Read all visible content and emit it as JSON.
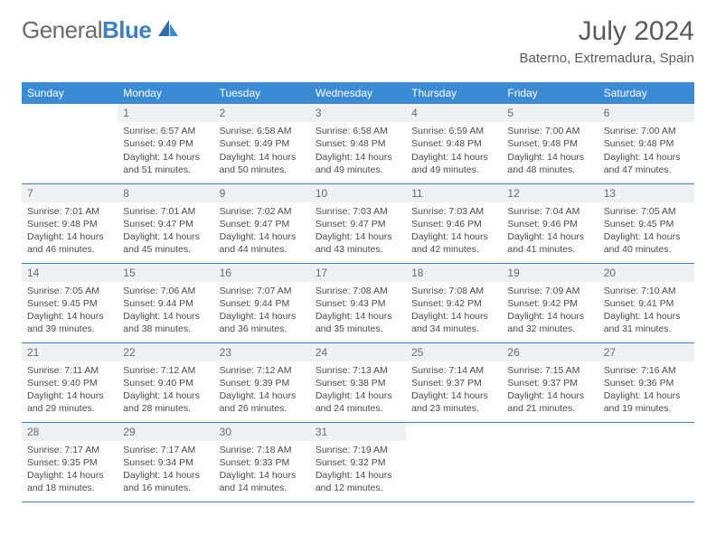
{
  "brand": {
    "text1": "General",
    "text2": "Blue"
  },
  "title": "July 2024",
  "location": "Baterno, Extremadura, Spain",
  "colors": {
    "header_bg": "#3b8bd4",
    "header_text": "#ffffff",
    "daynum_bg": "#eef0f2",
    "rule": "#3b7fc4",
    "brand_gray": "#6a6a6a",
    "brand_blue": "#3b7fc4",
    "body_text": "#4a4a4a"
  },
  "weekdays": [
    "Sunday",
    "Monday",
    "Tuesday",
    "Wednesday",
    "Thursday",
    "Friday",
    "Saturday"
  ],
  "weeks": [
    [
      null,
      {
        "n": "1",
        "sr": "Sunrise: 6:57 AM",
        "ss": "Sunset: 9:49 PM",
        "d1": "Daylight: 14 hours",
        "d2": "and 51 minutes."
      },
      {
        "n": "2",
        "sr": "Sunrise: 6:58 AM",
        "ss": "Sunset: 9:49 PM",
        "d1": "Daylight: 14 hours",
        "d2": "and 50 minutes."
      },
      {
        "n": "3",
        "sr": "Sunrise: 6:58 AM",
        "ss": "Sunset: 9:48 PM",
        "d1": "Daylight: 14 hours",
        "d2": "and 49 minutes."
      },
      {
        "n": "4",
        "sr": "Sunrise: 6:59 AM",
        "ss": "Sunset: 9:48 PM",
        "d1": "Daylight: 14 hours",
        "d2": "and 49 minutes."
      },
      {
        "n": "5",
        "sr": "Sunrise: 7:00 AM",
        "ss": "Sunset: 9:48 PM",
        "d1": "Daylight: 14 hours",
        "d2": "and 48 minutes."
      },
      {
        "n": "6",
        "sr": "Sunrise: 7:00 AM",
        "ss": "Sunset: 9:48 PM",
        "d1": "Daylight: 14 hours",
        "d2": "and 47 minutes."
      }
    ],
    [
      {
        "n": "7",
        "sr": "Sunrise: 7:01 AM",
        "ss": "Sunset: 9:48 PM",
        "d1": "Daylight: 14 hours",
        "d2": "and 46 minutes."
      },
      {
        "n": "8",
        "sr": "Sunrise: 7:01 AM",
        "ss": "Sunset: 9:47 PM",
        "d1": "Daylight: 14 hours",
        "d2": "and 45 minutes."
      },
      {
        "n": "9",
        "sr": "Sunrise: 7:02 AM",
        "ss": "Sunset: 9:47 PM",
        "d1": "Daylight: 14 hours",
        "d2": "and 44 minutes."
      },
      {
        "n": "10",
        "sr": "Sunrise: 7:03 AM",
        "ss": "Sunset: 9:47 PM",
        "d1": "Daylight: 14 hours",
        "d2": "and 43 minutes."
      },
      {
        "n": "11",
        "sr": "Sunrise: 7:03 AM",
        "ss": "Sunset: 9:46 PM",
        "d1": "Daylight: 14 hours",
        "d2": "and 42 minutes."
      },
      {
        "n": "12",
        "sr": "Sunrise: 7:04 AM",
        "ss": "Sunset: 9:46 PM",
        "d1": "Daylight: 14 hours",
        "d2": "and 41 minutes."
      },
      {
        "n": "13",
        "sr": "Sunrise: 7:05 AM",
        "ss": "Sunset: 9:45 PM",
        "d1": "Daylight: 14 hours",
        "d2": "and 40 minutes."
      }
    ],
    [
      {
        "n": "14",
        "sr": "Sunrise: 7:05 AM",
        "ss": "Sunset: 9:45 PM",
        "d1": "Daylight: 14 hours",
        "d2": "and 39 minutes."
      },
      {
        "n": "15",
        "sr": "Sunrise: 7:06 AM",
        "ss": "Sunset: 9:44 PM",
        "d1": "Daylight: 14 hours",
        "d2": "and 38 minutes."
      },
      {
        "n": "16",
        "sr": "Sunrise: 7:07 AM",
        "ss": "Sunset: 9:44 PM",
        "d1": "Daylight: 14 hours",
        "d2": "and 36 minutes."
      },
      {
        "n": "17",
        "sr": "Sunrise: 7:08 AM",
        "ss": "Sunset: 9:43 PM",
        "d1": "Daylight: 14 hours",
        "d2": "and 35 minutes."
      },
      {
        "n": "18",
        "sr": "Sunrise: 7:08 AM",
        "ss": "Sunset: 9:42 PM",
        "d1": "Daylight: 14 hours",
        "d2": "and 34 minutes."
      },
      {
        "n": "19",
        "sr": "Sunrise: 7:09 AM",
        "ss": "Sunset: 9:42 PM",
        "d1": "Daylight: 14 hours",
        "d2": "and 32 minutes."
      },
      {
        "n": "20",
        "sr": "Sunrise: 7:10 AM",
        "ss": "Sunset: 9:41 PM",
        "d1": "Daylight: 14 hours",
        "d2": "and 31 minutes."
      }
    ],
    [
      {
        "n": "21",
        "sr": "Sunrise: 7:11 AM",
        "ss": "Sunset: 9:40 PM",
        "d1": "Daylight: 14 hours",
        "d2": "and 29 minutes."
      },
      {
        "n": "22",
        "sr": "Sunrise: 7:12 AM",
        "ss": "Sunset: 9:40 PM",
        "d1": "Daylight: 14 hours",
        "d2": "and 28 minutes."
      },
      {
        "n": "23",
        "sr": "Sunrise: 7:12 AM",
        "ss": "Sunset: 9:39 PM",
        "d1": "Daylight: 14 hours",
        "d2": "and 26 minutes."
      },
      {
        "n": "24",
        "sr": "Sunrise: 7:13 AM",
        "ss": "Sunset: 9:38 PM",
        "d1": "Daylight: 14 hours",
        "d2": "and 24 minutes."
      },
      {
        "n": "25",
        "sr": "Sunrise: 7:14 AM",
        "ss": "Sunset: 9:37 PM",
        "d1": "Daylight: 14 hours",
        "d2": "and 23 minutes."
      },
      {
        "n": "26",
        "sr": "Sunrise: 7:15 AM",
        "ss": "Sunset: 9:37 PM",
        "d1": "Daylight: 14 hours",
        "d2": "and 21 minutes."
      },
      {
        "n": "27",
        "sr": "Sunrise: 7:16 AM",
        "ss": "Sunset: 9:36 PM",
        "d1": "Daylight: 14 hours",
        "d2": "and 19 minutes."
      }
    ],
    [
      {
        "n": "28",
        "sr": "Sunrise: 7:17 AM",
        "ss": "Sunset: 9:35 PM",
        "d1": "Daylight: 14 hours",
        "d2": "and 18 minutes."
      },
      {
        "n": "29",
        "sr": "Sunrise: 7:17 AM",
        "ss": "Sunset: 9:34 PM",
        "d1": "Daylight: 14 hours",
        "d2": "and 16 minutes."
      },
      {
        "n": "30",
        "sr": "Sunrise: 7:18 AM",
        "ss": "Sunset: 9:33 PM",
        "d1": "Daylight: 14 hours",
        "d2": "and 14 minutes."
      },
      {
        "n": "31",
        "sr": "Sunrise: 7:19 AM",
        "ss": "Sunset: 9:32 PM",
        "d1": "Daylight: 14 hours",
        "d2": "and 12 minutes."
      },
      null,
      null,
      null
    ]
  ]
}
